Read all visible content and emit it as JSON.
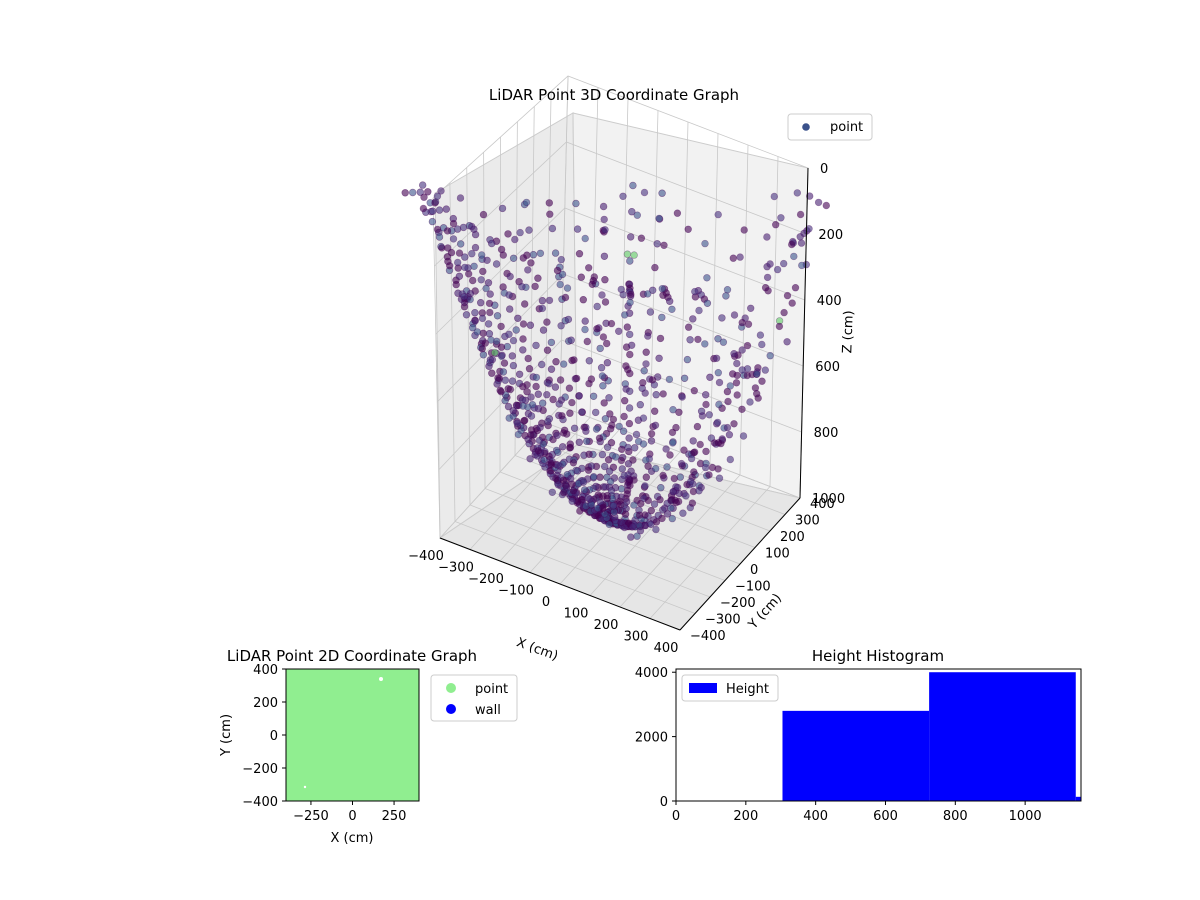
{
  "figure": {
    "colors": {
      "viridis_dark": "#440154",
      "viridis_mid": "#3b528b",
      "viridis_light": "#5ec962",
      "point_green": "#90ee90",
      "wall_blue": "#0000ff",
      "hist_blue": "#0000ff"
    }
  },
  "chart_data": [
    {
      "type": "scatter",
      "title": "LiDAR Point 3D Coordinate Graph",
      "xlabel": "X (cm)",
      "ylabel": "Y (cm)",
      "zlabel": "Z (cm)",
      "x_ticks": [
        "−400",
        "−300",
        "−200",
        "−100",
        "0",
        "100",
        "200",
        "300",
        "400"
      ],
      "y_ticks": [
        "−400",
        "−300",
        "−200",
        "−100",
        "0",
        "100",
        "200",
        "300",
        "400"
      ],
      "z_ticks": [
        "0",
        "200",
        "400",
        "600",
        "800",
        "1000"
      ],
      "xlim": [
        -400,
        400
      ],
      "ylim": [
        -400,
        400
      ],
      "zlim": [
        0,
        1000
      ],
      "z_inverted": true,
      "colormap": "viridis",
      "grid": true,
      "legend": {
        "position": "top-right",
        "entries": [
          "point"
        ]
      },
      "description_of_distribution": "bowl-shaped surface of radial scan lines"
    },
    {
      "type": "scatter",
      "title": "LiDAR Point 2D Coordinate Graph",
      "xlabel": "X (cm)",
      "ylabel": "Y (cm)",
      "x_ticks": [
        "−250",
        "0",
        "250"
      ],
      "y_ticks": [
        "−400",
        "−200",
        "0",
        "200",
        "400"
      ],
      "xlim": [
        -400,
        400
      ],
      "ylim": [
        -400,
        400
      ],
      "legend": {
        "position": "right-outside",
        "entries": [
          "point",
          "wall"
        ]
      },
      "series": [
        {
          "name": "point",
          "color": "#90ee90",
          "fill": "full area"
        },
        {
          "name": "wall",
          "color": "#0000ff",
          "fill": "none visible"
        }
      ]
    },
    {
      "type": "bar",
      "title": "Height Histogram",
      "x_ticks": [
        "0",
        "200",
        "400",
        "600",
        "800",
        "1000"
      ],
      "y_ticks": [
        "0",
        "2000",
        "4000"
      ],
      "xlim": [
        0,
        1160
      ],
      "ylim": [
        0,
        4100
      ],
      "legend": {
        "position": "top-left",
        "entries": [
          "Height"
        ]
      },
      "bins": [
        {
          "start": 305,
          "end": 725,
          "count": 2800
        },
        {
          "start": 725,
          "end": 1145,
          "count": 4000
        },
        {
          "start": 1145,
          "end": 1160,
          "count": 130
        }
      ]
    }
  ]
}
